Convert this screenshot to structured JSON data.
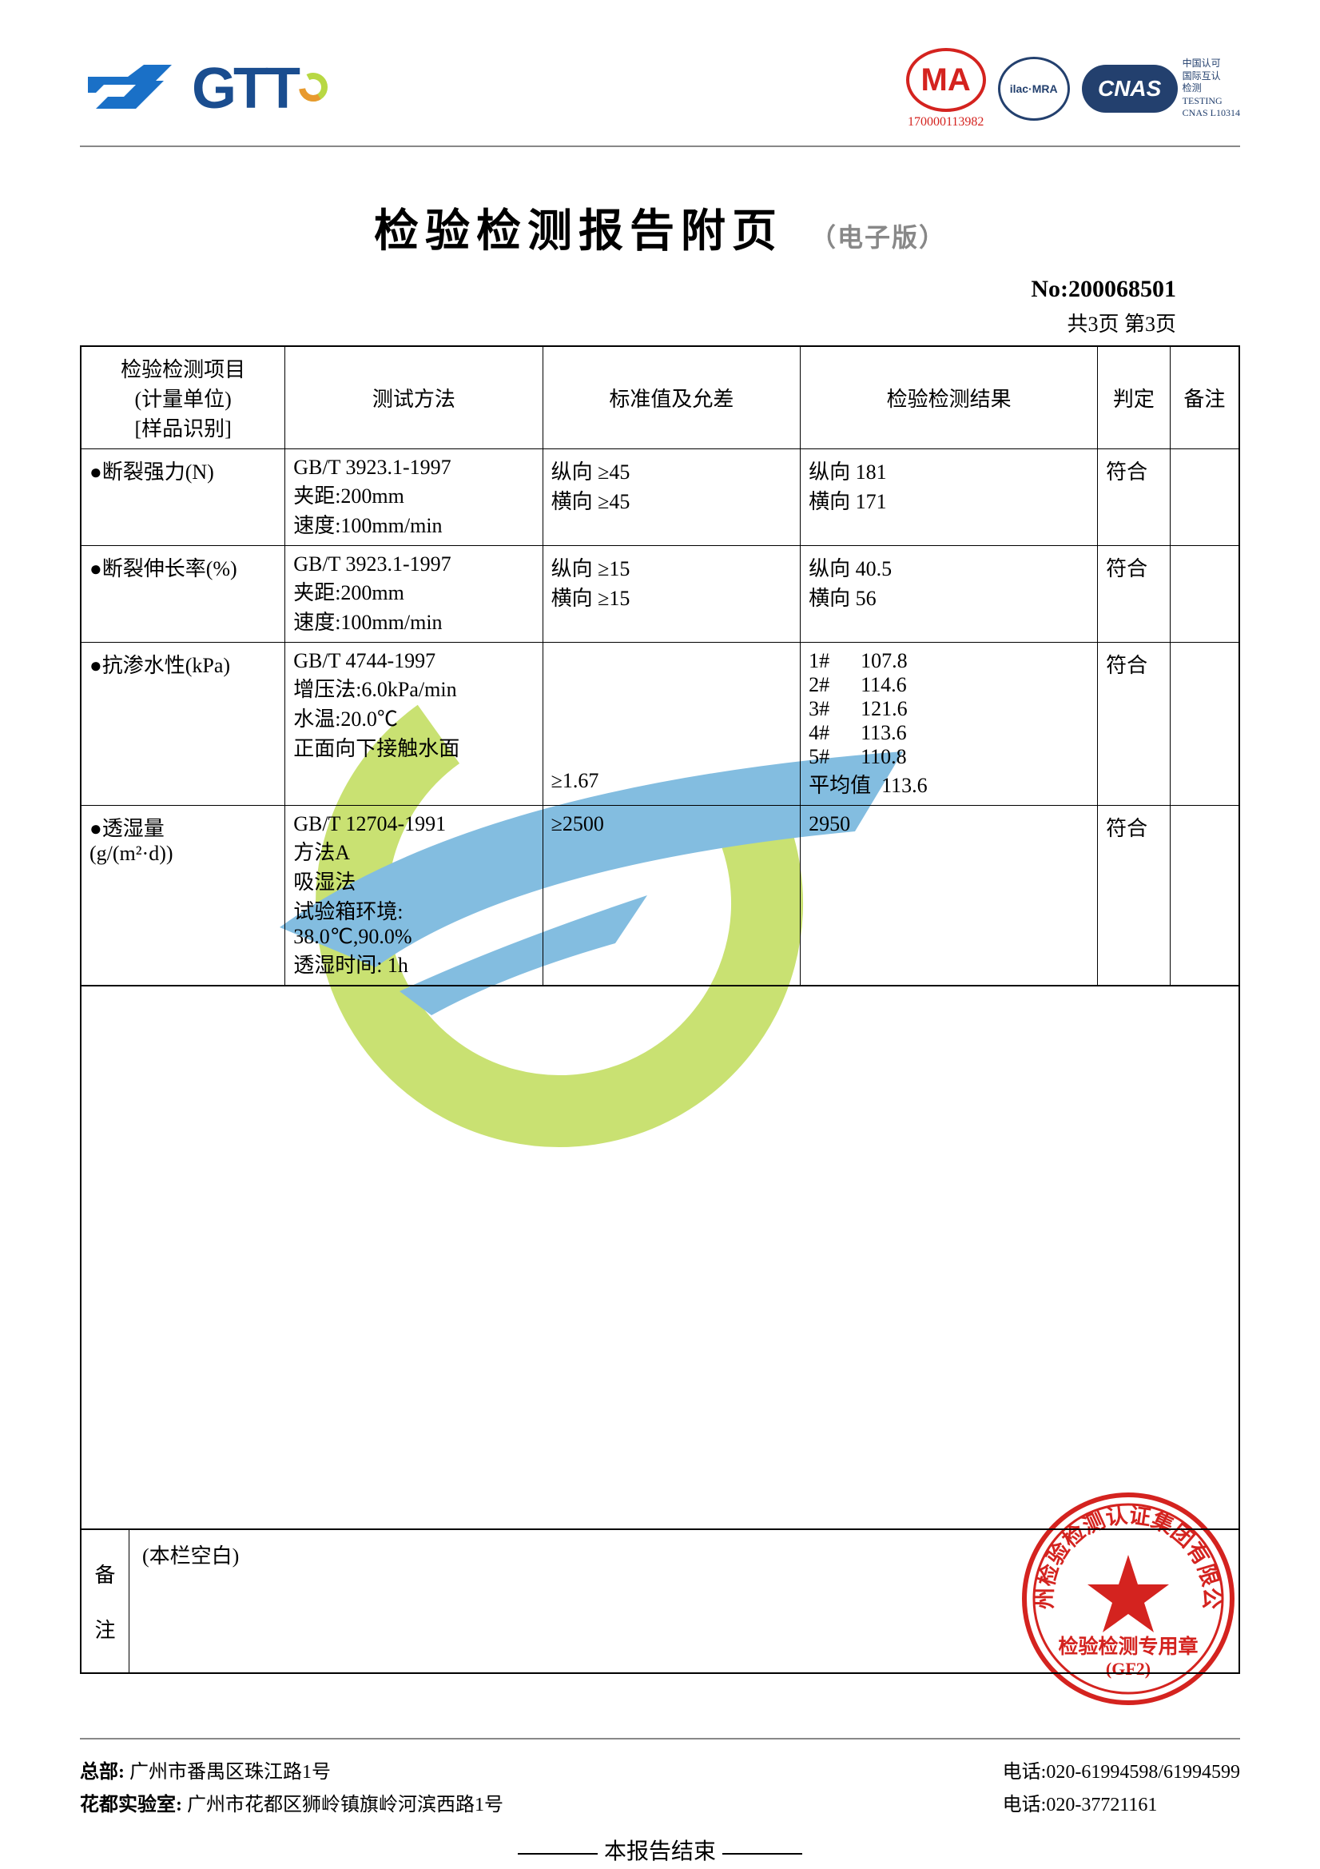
{
  "logos": {
    "gtt_text": "GTT",
    "cma_text": "MA",
    "cma_number": "170000113982",
    "ilac_text": "ilac·MRA",
    "cnas_text": "CNAS",
    "cnas_side": "中国认可\n国际互认\n检测\nTESTING\nCNAS L10314"
  },
  "title": "检验检测报告附页",
  "title_sub": "（电子版）",
  "report_no_label": "No:",
  "report_no": "200068501",
  "page_info": "共3页 第3页",
  "table": {
    "headers": {
      "item": "检验检测项目\n(计量单位)\n[样品识别]",
      "method": "测试方法",
      "standard": "标准值及允差",
      "result": "检验检测结果",
      "judge": "判定",
      "note": "备注"
    },
    "rows": [
      {
        "item": "●断裂强力(N)",
        "method": "GB/T 3923.1-1997\n夹距:200mm\n速度:100mm/min",
        "standard": "纵向 ≥45\n横向 ≥45",
        "result": "纵向 181\n横向 171",
        "judge": "符合",
        "note": ""
      },
      {
        "item": "●断裂伸长率(%)",
        "method": "GB/T 3923.1-1997\n夹距:200mm\n速度:100mm/min",
        "standard": "纵向 ≥15\n横向 ≥15",
        "result": "纵向 40.5\n横向 56",
        "judge": "符合",
        "note": ""
      },
      {
        "item": "●抗渗水性(kPa)",
        "method": "GB/T 4744-1997\n增压法:6.0kPa/min\n水温:20.0℃\n正面向下接触水面",
        "standard": "\n\n\n\n\n≥1.67",
        "result": "1#      107.8\n2#      114.6\n3#      121.6\n4#      113.6\n5#      110.8\n平均值  113.6",
        "judge": "符合",
        "note": ""
      },
      {
        "item": "●透湿量\n(g/(m²·d))",
        "method": "GB/T 12704-1991\n方法A\n吸湿法\n试验箱环境:\n38.0℃,90.0%\n透湿时间: 1h",
        "standard": "≥2500",
        "result": "2950",
        "judge": "符合",
        "note": ""
      }
    ]
  },
  "remark_label_1": "备",
  "remark_label_2": "注",
  "remark_content": "(本栏空白)",
  "end_text": "本报告结束",
  "stamp": {
    "outer_text": "广州检验检测认证集团有限公司",
    "inner_text": "检验检测专用章",
    "code": "(GF2)",
    "color": "#d4231f"
  },
  "footer": {
    "hq_label": "总部:",
    "hq_addr": "广州市番禺区珠江路1号",
    "hq_tel_label": "电话:",
    "hq_tel": "020-61994598/61994599",
    "lab_label": "花都实验室:",
    "lab_addr": "广州市花都区狮岭镇旗岭河滨西路1号",
    "lab_tel_label": "电话:",
    "lab_tel": "020-37721161"
  },
  "colors": {
    "brand_blue": "#1a4d8f",
    "accent_red": "#d4231f",
    "watermark_green": "#b8d843",
    "watermark_blue": "#5aa8d6",
    "border": "#000000",
    "muted": "#888888"
  }
}
